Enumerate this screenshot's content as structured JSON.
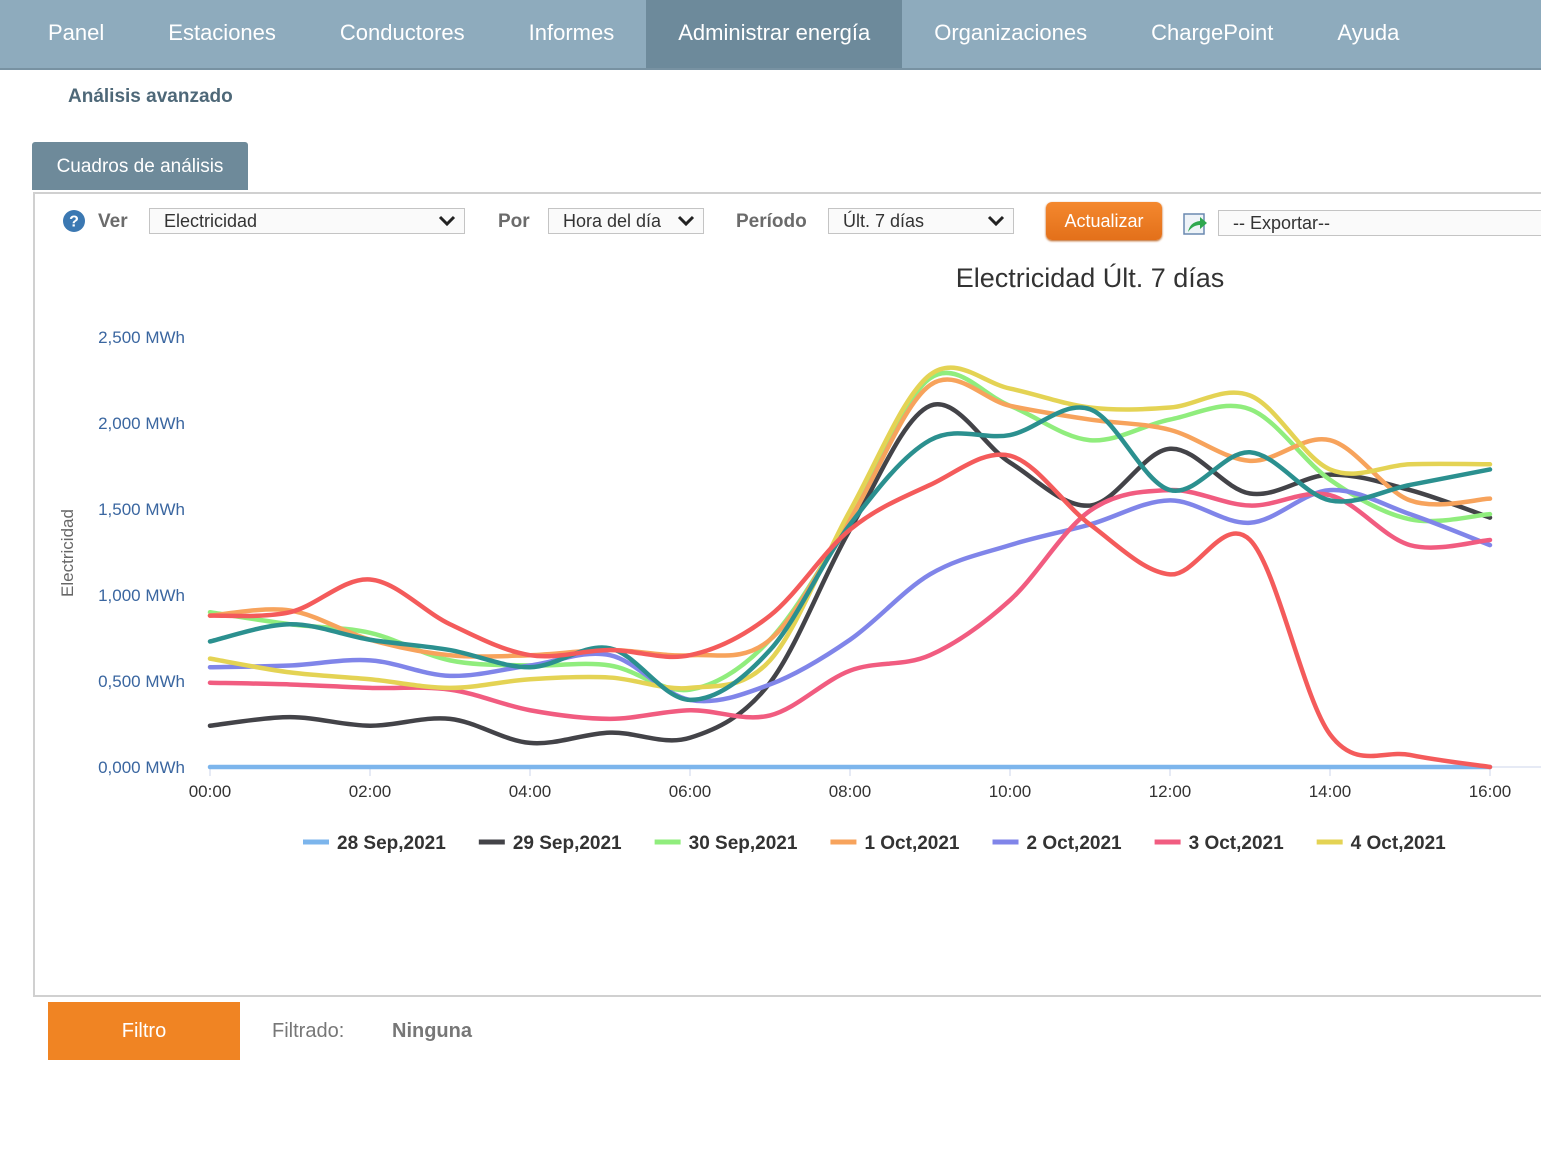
{
  "nav": {
    "items": [
      "Panel",
      "Estaciones",
      "Conductores",
      "Informes",
      "Administrar energía",
      "Organizaciones",
      "ChargePoint",
      "Ayuda"
    ],
    "active_index": 4
  },
  "subnav": "Análisis avanzado",
  "tab": "Cuadros de análisis",
  "toolbar": {
    "help": "?",
    "ver_label": "Ver",
    "ver_value": "Electricidad",
    "por_label": "Por",
    "por_value": "Hora del día",
    "periodo_label": "Período",
    "periodo_value": "Últ. 7 días",
    "button": "Actualizar",
    "export": "-- Exportar--"
  },
  "chart_data": {
    "type": "line",
    "title": "Electricidad Últ. 7 días",
    "y_label": "Electricidad",
    "x": [
      0,
      1,
      2,
      3,
      4,
      5,
      6,
      7,
      8,
      9,
      10,
      11,
      12,
      13,
      14,
      15,
      16
    ],
    "xlim": [
      0,
      16.64
    ],
    "xticks": [
      {
        "value": 0,
        "label": "00:00"
      },
      {
        "value": 2,
        "label": "02:00"
      },
      {
        "value": 4,
        "label": "04:00"
      },
      {
        "value": 6,
        "label": "06:00"
      },
      {
        "value": 8,
        "label": "08:00"
      },
      {
        "value": 10,
        "label": "10:00"
      },
      {
        "value": 12,
        "label": "12:00"
      },
      {
        "value": 14,
        "label": "14:00"
      },
      {
        "value": 16,
        "label": "16:00"
      }
    ],
    "ylim": [
      0,
      2.5
    ],
    "yticks": [
      {
        "value": 0,
        "label": "0,000 MWh"
      },
      {
        "value": 0.5,
        "label": "0,500 MWh"
      },
      {
        "value": 1,
        "label": "1,000 MWh"
      },
      {
        "value": 1.5,
        "label": "1,500 MWh"
      },
      {
        "value": 2,
        "label": "2,000 MWh"
      },
      {
        "value": 2.5,
        "label": "2,500 MWh"
      }
    ],
    "grid": false,
    "series": [
      {
        "name": "28 Sep,2021",
        "color": "#7cb5ec",
        "values": [
          0,
          0,
          0,
          0,
          0,
          0,
          0,
          0,
          0,
          0,
          0,
          0,
          0,
          0,
          0,
          0,
          0
        ]
      },
      {
        "name": "29 Sep,2021",
        "color": "#434348",
        "values": [
          0.24,
          0.29,
          0.24,
          0.28,
          0.14,
          0.2,
          0.17,
          0.49,
          1.38,
          2.1,
          1.77,
          1.52,
          1.85,
          1.59,
          1.7,
          1.61,
          1.45
        ]
      },
      {
        "name": "30 Sep,2021",
        "color": "#90ed7d",
        "values": [
          0.9,
          0.83,
          0.78,
          0.62,
          0.59,
          0.59,
          0.45,
          0.74,
          1.44,
          2.26,
          2.1,
          1.9,
          2.02,
          2.08,
          1.67,
          1.44,
          1.47
        ]
      },
      {
        "name": "1 Oct,2021",
        "color": "#f7a35c",
        "values": [
          0.88,
          0.91,
          0.74,
          0.65,
          0.65,
          0.68,
          0.65,
          0.74,
          1.44,
          2.22,
          2.1,
          2.02,
          1.96,
          1.78,
          1.9,
          1.55,
          1.56
        ]
      },
      {
        "name": "2 Oct,2021",
        "color": "#8085e9",
        "values": [
          0.58,
          0.59,
          0.62,
          0.53,
          0.59,
          0.65,
          0.39,
          0.48,
          0.74,
          1.12,
          1.29,
          1.41,
          1.55,
          1.42,
          1.61,
          1.47,
          1.29
        ]
      },
      {
        "name": "3 Oct,2021",
        "color": "#f15c80",
        "values": [
          0.49,
          0.48,
          0.46,
          0.45,
          0.33,
          0.28,
          0.33,
          0.3,
          0.56,
          0.65,
          0.97,
          1.49,
          1.61,
          1.52,
          1.58,
          1.29,
          1.32
        ]
      },
      {
        "name": "4 Oct,2021",
        "color": "#e4d354",
        "values": [
          0.63,
          0.55,
          0.51,
          0.46,
          0.51,
          0.52,
          0.46,
          0.62,
          1.49,
          2.28,
          2.2,
          2.09,
          2.09,
          2.16,
          1.73,
          1.76,
          1.76
        ]
      },
      {
        "color": "#2b908f",
        "values": [
          0.73,
          0.83,
          0.74,
          0.68,
          0.58,
          0.69,
          0.39,
          0.68,
          1.41,
          1.9,
          1.93,
          2.08,
          1.61,
          1.83,
          1.55,
          1.64,
          1.73
        ]
      },
      {
        "color": "#f45b5b",
        "values": [
          0.88,
          0.9,
          1.09,
          0.83,
          0.65,
          0.68,
          0.65,
          0.88,
          1.38,
          1.64,
          1.81,
          1.41,
          1.12,
          1.32,
          0.19,
          0.07,
          0
        ]
      }
    ]
  },
  "filter": {
    "button": "Filtro",
    "label": "Filtrado:",
    "value": "Ninguna"
  }
}
